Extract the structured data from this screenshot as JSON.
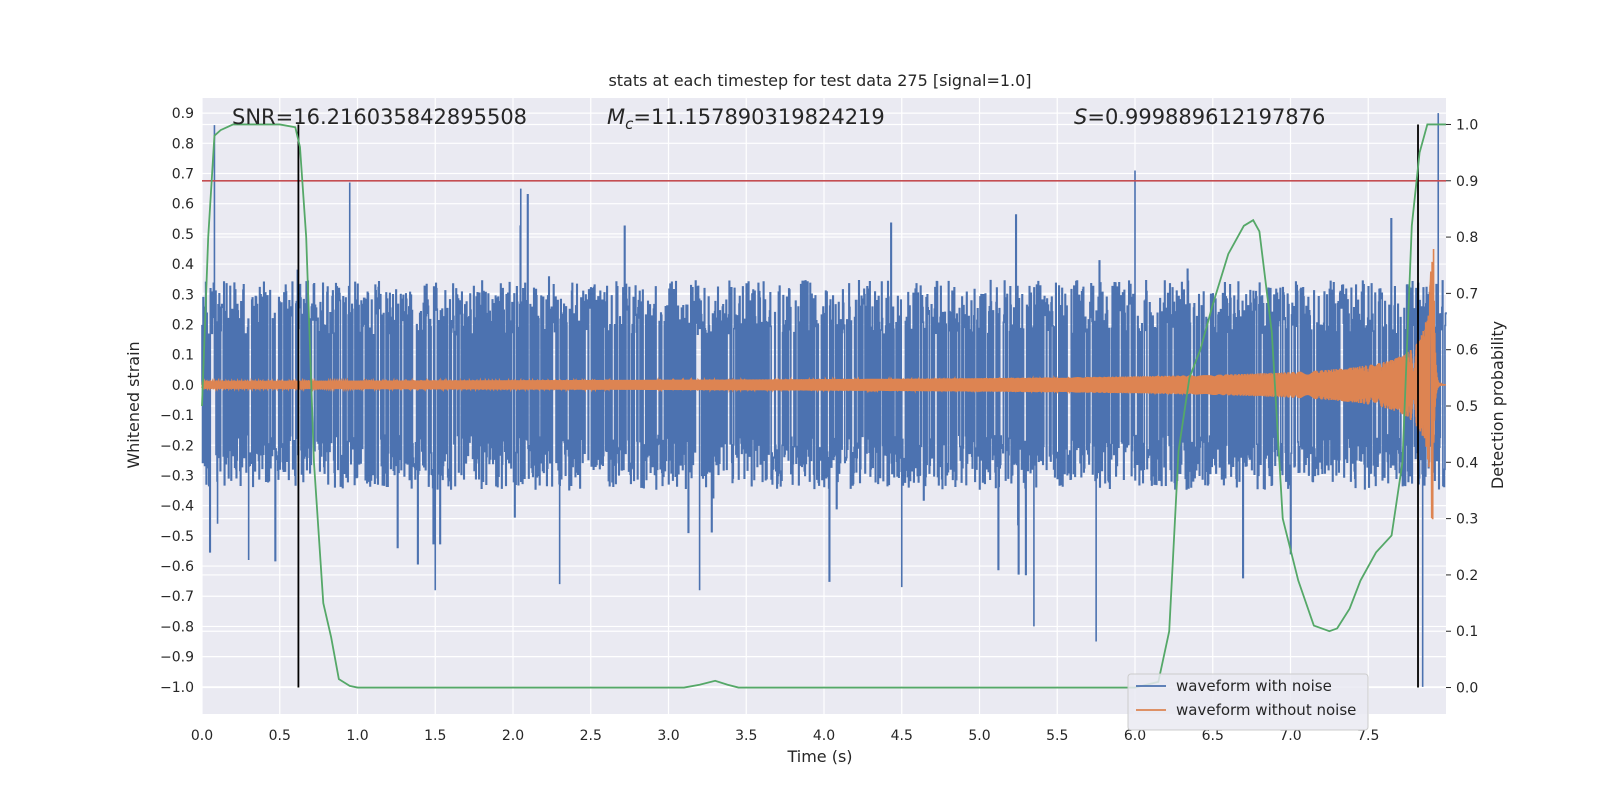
{
  "chart_data": {
    "type": "line",
    "title": "stats at each timestep for test data 275 [signal=1.0]",
    "xlabel": "Time (s)",
    "ylabel": "Whitened strain",
    "y2label": "Detection probability",
    "xlim": [
      0.0,
      8.0
    ],
    "ylim": [
      -1.09,
      0.95
    ],
    "y2lim": [
      -0.047,
      1.047
    ],
    "xticks": [
      0.0,
      0.5,
      1.0,
      1.5,
      2.0,
      2.5,
      3.0,
      3.5,
      4.0,
      4.5,
      5.0,
      5.5,
      6.0,
      6.5,
      7.0,
      7.5
    ],
    "xtick_labels": [
      "0.0",
      "0.5",
      "1.0",
      "1.5",
      "2.0",
      "2.5",
      "3.0",
      "3.5",
      "4.0",
      "4.5",
      "5.0",
      "5.5",
      "6.0",
      "6.5",
      "7.0",
      "7.5"
    ],
    "yticks": [
      0.9,
      0.8,
      0.7,
      0.6,
      0.5,
      0.4,
      0.3,
      0.2,
      0.1,
      0.0,
      -0.1,
      -0.2,
      -0.3,
      -0.4,
      -0.5,
      -0.6,
      -0.7,
      -0.8,
      -0.9,
      -1.0
    ],
    "ytick_labels": [
      "0.9",
      "0.8",
      "0.7",
      "0.6",
      "0.5",
      "0.4",
      "0.3",
      "0.2",
      "0.1",
      "0.0",
      "−0.1",
      "−0.2",
      "−0.3",
      "−0.4",
      "−0.5",
      "−0.6",
      "−0.7",
      "−0.8",
      "−0.9",
      "−1.0"
    ],
    "y2ticks": [
      1.0,
      0.9,
      0.8,
      0.7,
      0.6,
      0.5,
      0.4,
      0.3,
      0.2,
      0.1,
      0.0
    ],
    "y2tick_labels": [
      "1.0",
      "0.9",
      "0.8",
      "0.7",
      "0.6",
      "0.5",
      "0.4",
      "0.3",
      "0.2",
      "0.1",
      "0.0"
    ],
    "grid": true,
    "legend_position": "bottom-right",
    "annotations": {
      "snr": "SNR=16.216035842895508",
      "mc_symbol": "M",
      "mc_sub": "c",
      "mc_value": "=11.157890319824219",
      "s_symbol": "S",
      "s_value": "=0.999889612197876"
    },
    "threshold_line": {
      "axis": "right",
      "y": 0.9,
      "color": "#c44e52"
    },
    "vertical_lines": [
      {
        "x": 0.62,
        "color": "#000000"
      },
      {
        "x": 7.82,
        "color": "#000000"
      }
    ],
    "series": [
      {
        "name": "waveform with noise",
        "axis": "left",
        "color": "#4c72b0",
        "kind": "noise",
        "typical_abs_amplitude": 0.3,
        "extreme_peaks": [
          [
            0.08,
            0.86
          ],
          [
            0.1,
            -0.46
          ],
          [
            0.3,
            -0.58
          ],
          [
            0.95,
            0.67
          ],
          [
            1.5,
            -0.68
          ],
          [
            2.05,
            0.65
          ],
          [
            2.3,
            -0.66
          ],
          [
            3.2,
            -0.68
          ],
          [
            4.5,
            -0.67
          ],
          [
            5.35,
            -0.8
          ],
          [
            5.75,
            -0.85
          ],
          [
            6.0,
            0.71
          ],
          [
            7.85,
            -1.0
          ],
          [
            7.95,
            0.9
          ]
        ]
      },
      {
        "name": "waveform without noise",
        "axis": "left",
        "color": "#dd8452",
        "kind": "chirp",
        "amplitude_start": 0.013,
        "amplitude_end": 0.45,
        "merger_time": 7.92
      },
      {
        "name": "detection probability",
        "axis": "right",
        "color": "#55a868",
        "x": [
          0.0,
          0.04,
          0.08,
          0.12,
          0.2,
          0.3,
          0.4,
          0.5,
          0.6,
          0.63,
          0.67,
          0.72,
          0.78,
          0.83,
          0.88,
          0.95,
          1.0,
          1.5,
          2.0,
          2.5,
          3.0,
          3.1,
          3.2,
          3.3,
          3.38,
          3.45,
          3.6,
          4.0,
          4.5,
          5.0,
          5.5,
          6.0,
          6.15,
          6.22,
          6.28,
          6.35,
          6.42,
          6.5,
          6.6,
          6.7,
          6.76,
          6.8,
          6.88,
          6.95,
          7.05,
          7.15,
          7.25,
          7.3,
          7.38,
          7.45,
          7.55,
          7.65,
          7.72,
          7.78,
          7.83,
          7.88,
          7.93,
          7.97,
          8.0
        ],
        "y": [
          0.5,
          0.8,
          0.98,
          0.99,
          1.0,
          1.0,
          1.0,
          1.0,
          0.995,
          0.96,
          0.8,
          0.4,
          0.15,
          0.09,
          0.015,
          0.003,
          0.0,
          0.0,
          0.0,
          0.0,
          0.0,
          0.0,
          0.005,
          0.012,
          0.005,
          0.0,
          0.0,
          0.0,
          0.0,
          0.0,
          0.0,
          0.0,
          0.01,
          0.1,
          0.42,
          0.55,
          0.6,
          0.68,
          0.77,
          0.82,
          0.83,
          0.81,
          0.63,
          0.3,
          0.19,
          0.11,
          0.1,
          0.105,
          0.14,
          0.19,
          0.24,
          0.27,
          0.4,
          0.82,
          0.95,
          1.0,
          1.0,
          1.0,
          1.0
        ]
      }
    ]
  }
}
